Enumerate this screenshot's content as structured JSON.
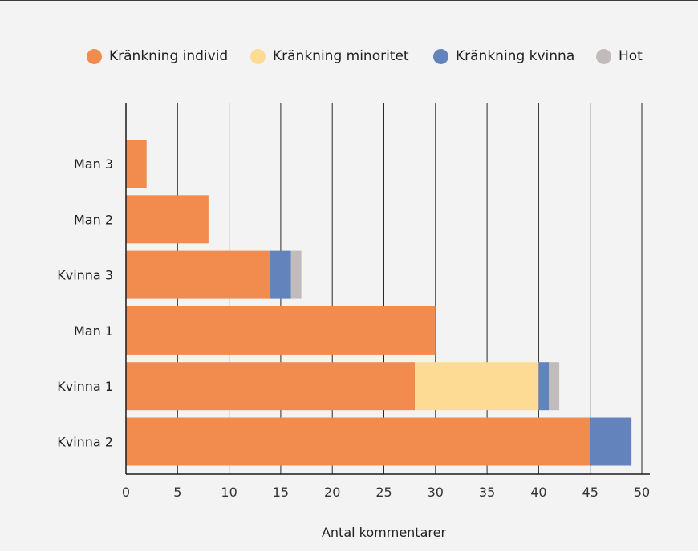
{
  "chart_data": {
    "type": "bar",
    "orientation": "horizontal",
    "stacked": true,
    "categories": [
      "Man 3",
      "Man 2",
      "Kvinna 3",
      "Man 1",
      "Kvinna 1",
      "Kvinna 2"
    ],
    "series": [
      {
        "name": "Kränkning individ",
        "color": "#f28c4e",
        "values": [
          2,
          8,
          14,
          30,
          28,
          45
        ]
      },
      {
        "name": "Kränkning minoritet",
        "color": "#fddb94",
        "values": [
          0,
          0,
          0,
          0,
          12,
          0
        ]
      },
      {
        "name": "Kränkning kvinna",
        "color": "#6283bc",
        "values": [
          0,
          0,
          2,
          0,
          1,
          4
        ]
      },
      {
        "name": "Hot",
        "color": "#c2bbbb",
        "values": [
          0,
          0,
          1,
          0,
          1,
          0
        ]
      }
    ],
    "title": "",
    "xlabel": "Antal kommentarer",
    "ylabel": "",
    "xlim": [
      0,
      50
    ],
    "xticks": [
      0,
      5,
      10,
      15,
      20,
      25,
      30,
      35,
      40,
      45,
      50
    ],
    "grid": "vertical",
    "legend_position": "top"
  }
}
